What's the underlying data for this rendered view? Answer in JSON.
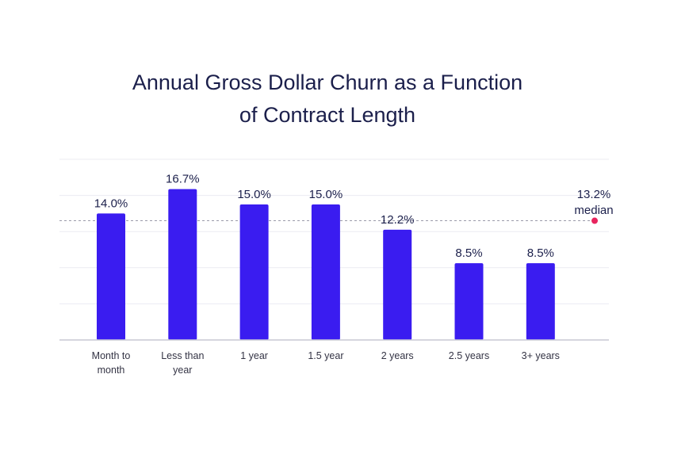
{
  "chart_data": {
    "type": "bar",
    "title_lines": [
      "Annual Gross Dollar Churn as a Function",
      "of Contract Length"
    ],
    "categories": [
      [
        "Month to",
        "month"
      ],
      [
        "Less than",
        "year"
      ],
      [
        "1 year"
      ],
      [
        "1.5 year"
      ],
      [
        "2 years"
      ],
      [
        "2.5 years"
      ],
      [
        "3+ years"
      ]
    ],
    "values": [
      14.0,
      16.7,
      15.0,
      15.0,
      12.2,
      8.5,
      8.5
    ],
    "value_labels": [
      "14.0%",
      "16.7%",
      "15.0%",
      "15.0%",
      "12.2%",
      "8.5%",
      "8.5%"
    ],
    "reference_line": {
      "value": 13.2,
      "label_lines": [
        "13.2%",
        "median"
      ],
      "style": "dashed",
      "marker": "dot"
    },
    "xlabel": "",
    "ylabel": "",
    "ylim": [
      0,
      20
    ],
    "grid": true,
    "legend": "none"
  },
  "colors": {
    "bar": "#3a1cf0",
    "title": "#1b1f4b",
    "text": "#1b1f4b",
    "tick_text": "#333344",
    "median_marker": "#e8245e",
    "grid": "#ececf2",
    "axis": "#c9c9d3",
    "median_line": "#9a9aaa"
  }
}
